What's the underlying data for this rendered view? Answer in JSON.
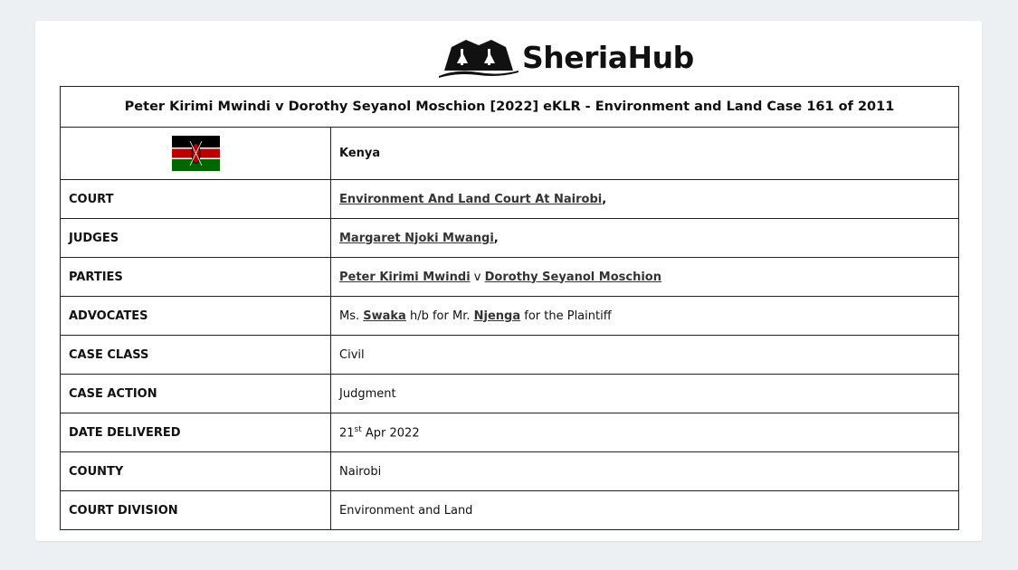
{
  "brand": {
    "name": "SheriaHub"
  },
  "case_title": "Peter Kirimi Mwindi v Dorothy Seyanol Moschion [2022] eKLR - Environment and Land Case 161 of 2011",
  "country": {
    "flag": "kenya-flag-icon",
    "name": "Kenya"
  },
  "rows": {
    "court": {
      "label": "COURT",
      "link": "Environment And Land Court At Nairobi",
      "suffix": ","
    },
    "judges": {
      "label": "JUDGES",
      "link": "Margaret Njoki Mwangi",
      "suffix": ","
    },
    "parties": {
      "label": "PARTIES",
      "party1": "Peter Kirimi Mwindi",
      "sep": " v ",
      "party2": "Dorothy Seyanol Moschion"
    },
    "advocates": {
      "label": "ADVOCATES",
      "t1": "Ms. ",
      "adv1": "Swaka",
      "t2": " h/b for Mr. ",
      "adv2": "Njenga",
      "t3": " for the Plaintiff"
    },
    "case_class": {
      "label": "CASE CLASS",
      "value": "Civil"
    },
    "case_action": {
      "label": "CASE ACTION",
      "value": "Judgment"
    },
    "date_delivered": {
      "label": "DATE DELIVERED",
      "day": "21",
      "sup": "st",
      "rest": " Apr 2022"
    },
    "county": {
      "label": "COUNTY",
      "value": "Nairobi"
    },
    "court_division": {
      "label": "COURT DIVISION",
      "value": "Environment and Land"
    }
  }
}
